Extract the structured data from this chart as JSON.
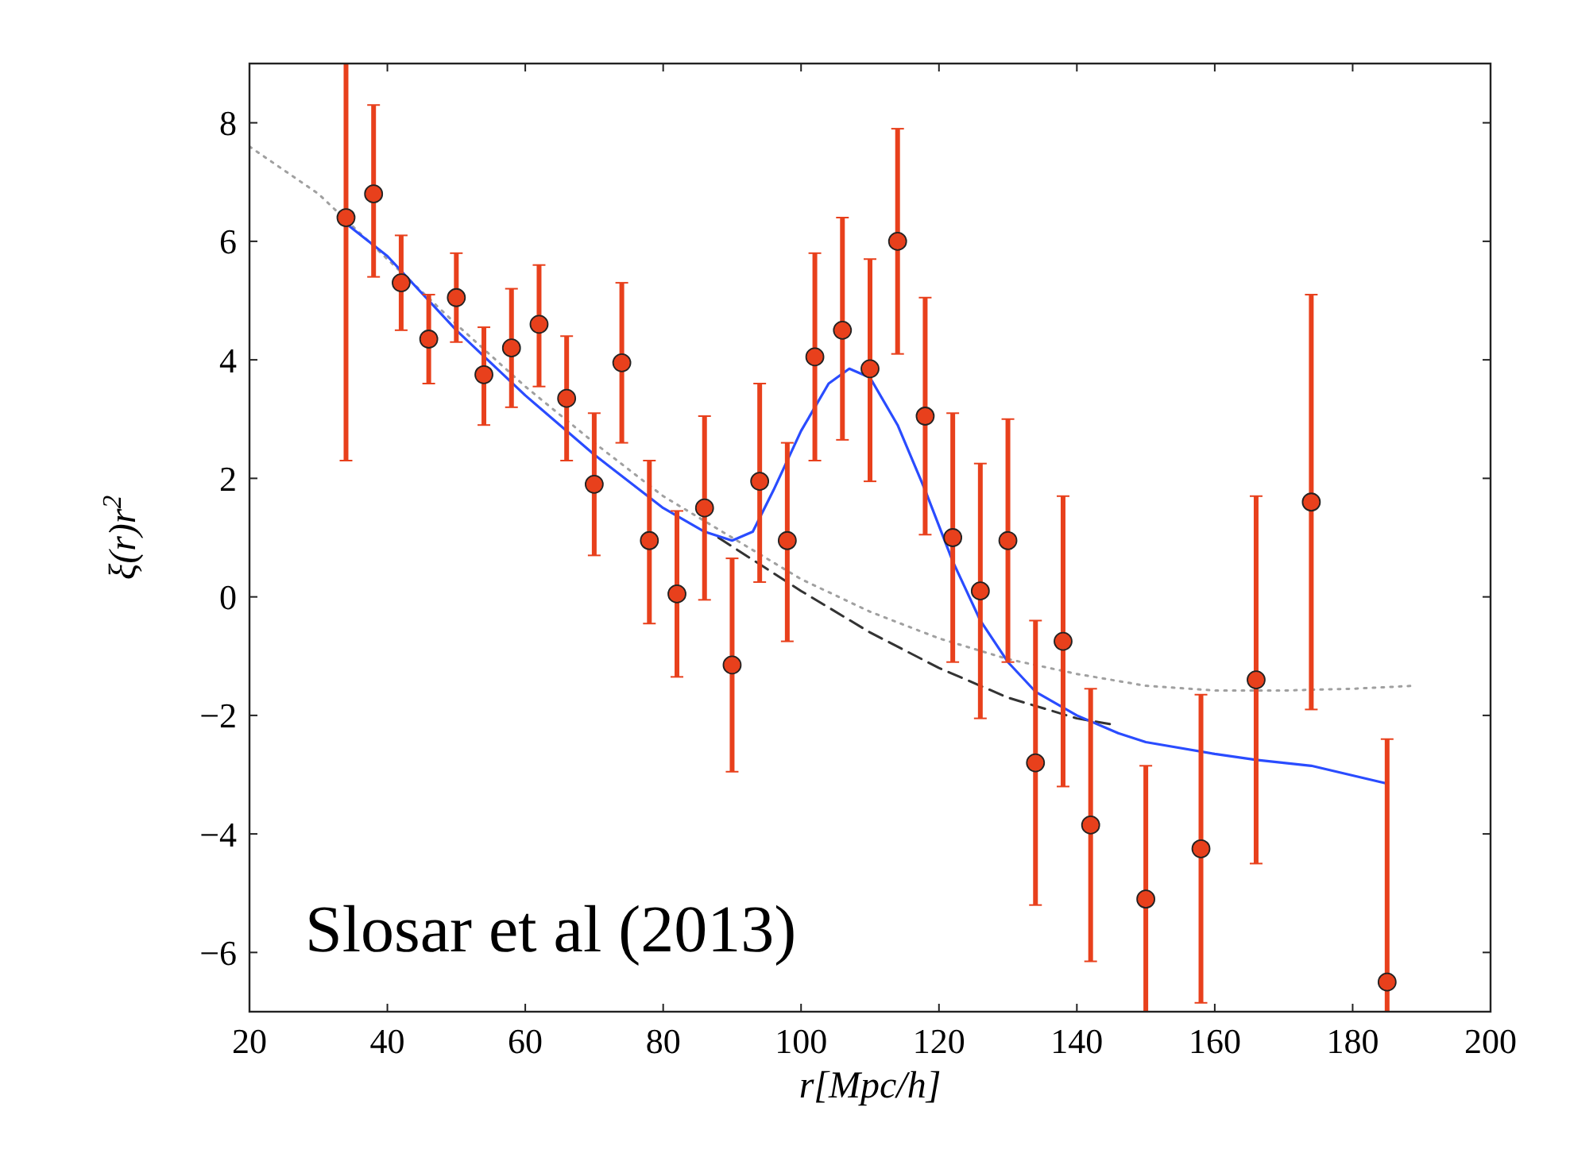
{
  "chart_data": {
    "type": "scatter",
    "xlabel": "r[Mpc/h]",
    "ylabel": "ξ(r)r$^{2}$",
    "xlim": [
      20,
      200
    ],
    "ylim": [
      -7,
      9
    ],
    "xticks": [
      20,
      40,
      60,
      80,
      100,
      120,
      140,
      160,
      180,
      200
    ],
    "yticks": [
      -6,
      -4,
      -2,
      0,
      2,
      4,
      6,
      8
    ],
    "grid": false,
    "annotations": [
      "Slosar et al (2013)"
    ],
    "series": [
      {
        "type": "line",
        "color": "#a0a0a0",
        "line_style": "dotted",
        "marker": "none",
        "x": [
          20,
          30,
          40,
          50,
          60,
          70,
          80,
          90,
          100,
          110,
          120,
          130,
          140,
          150,
          160,
          170,
          180,
          189
        ],
        "values": [
          7.6,
          6.8,
          5.7,
          4.6,
          3.55,
          2.6,
          1.7,
          1.0,
          0.3,
          -0.25,
          -0.7,
          -1.05,
          -1.3,
          -1.5,
          -1.58,
          -1.58,
          -1.55,
          -1.5
        ]
      },
      {
        "type": "line",
        "color": "#333333",
        "line_style": "dashed",
        "marker": "none",
        "x": [
          88,
          100,
          110,
          120,
          130,
          140,
          145
        ],
        "values": [
          1.0,
          0.1,
          -0.6,
          -1.2,
          -1.7,
          -2.05,
          -2.15
        ]
      },
      {
        "type": "line",
        "color": "#2a4cff",
        "line_style": "solid",
        "marker": "none",
        "x": [
          34,
          40,
          50,
          60,
          70,
          80,
          86,
          90,
          93,
          96,
          100,
          104,
          107,
          110,
          114,
          118,
          122,
          126,
          130,
          134,
          140,
          146,
          150,
          160,
          166,
          174,
          185
        ],
        "values": [
          6.3,
          5.75,
          4.5,
          3.4,
          2.4,
          1.5,
          1.1,
          0.95,
          1.1,
          1.8,
          2.8,
          3.6,
          3.85,
          3.7,
          2.9,
          1.8,
          0.6,
          -0.4,
          -1.1,
          -1.6,
          -2.0,
          -2.3,
          -2.45,
          -2.65,
          -2.75,
          -2.85,
          -3.15
        ]
      },
      {
        "color": "#e8401c",
        "marker": "circle",
        "x": [
          34,
          38,
          42,
          46,
          50,
          54,
          58,
          62,
          66,
          70,
          74,
          78,
          82,
          86,
          90,
          94,
          98,
          102,
          106,
          110,
          114,
          118,
          122,
          126,
          130,
          134,
          138,
          142,
          150,
          158,
          166,
          174,
          185
        ],
        "values": [
          6.4,
          6.8,
          5.3,
          4.35,
          5.05,
          3.75,
          4.2,
          4.6,
          3.35,
          1.9,
          3.95,
          0.95,
          0.05,
          1.5,
          -1.15,
          1.95,
          0.95,
          4.05,
          4.5,
          3.85,
          6.0,
          3.05,
          1.0,
          0.1,
          0.95,
          -2.8,
          -0.75,
          -3.85,
          -5.1,
          -4.25,
          -1.4,
          1.6,
          -6.5
        ],
        "errors": [
          [
            2.3,
            9
          ],
          [
            5.4,
            8.3
          ],
          [
            4.5,
            6.1
          ],
          [
            3.6,
            5.1
          ],
          [
            4.3,
            5.8
          ],
          [
            2.9,
            4.55
          ],
          [
            3.2,
            5.2
          ],
          [
            3.55,
            5.6
          ],
          [
            2.3,
            4.4
          ],
          [
            0.7,
            3.1
          ],
          [
            2.6,
            5.3
          ],
          [
            -0.45,
            2.3
          ],
          [
            -1.35,
            1.45
          ],
          [
            -0.05,
            3.05
          ],
          [
            -2.95,
            0.65
          ],
          [
            0.25,
            3.6
          ],
          [
            -0.75,
            2.6
          ],
          [
            2.3,
            5.8
          ],
          [
            2.65,
            6.4
          ],
          [
            1.95,
            5.7
          ],
          [
            4.1,
            7.9
          ],
          [
            1.05,
            5.05
          ],
          [
            -1.1,
            3.1
          ],
          [
            -2.05,
            2.25
          ],
          [
            -1.1,
            3.0
          ],
          [
            -5.2,
            -0.4
          ],
          [
            -3.2,
            1.7
          ],
          [
            -6.15,
            -1.55
          ],
          [
            -7,
            -2.85
          ],
          [
            -6.85,
            -1.65
          ],
          [
            -4.5,
            1.7
          ],
          [
            -1.9,
            5.1
          ],
          [
            -7,
            -2.4
          ]
        ]
      }
    ]
  }
}
